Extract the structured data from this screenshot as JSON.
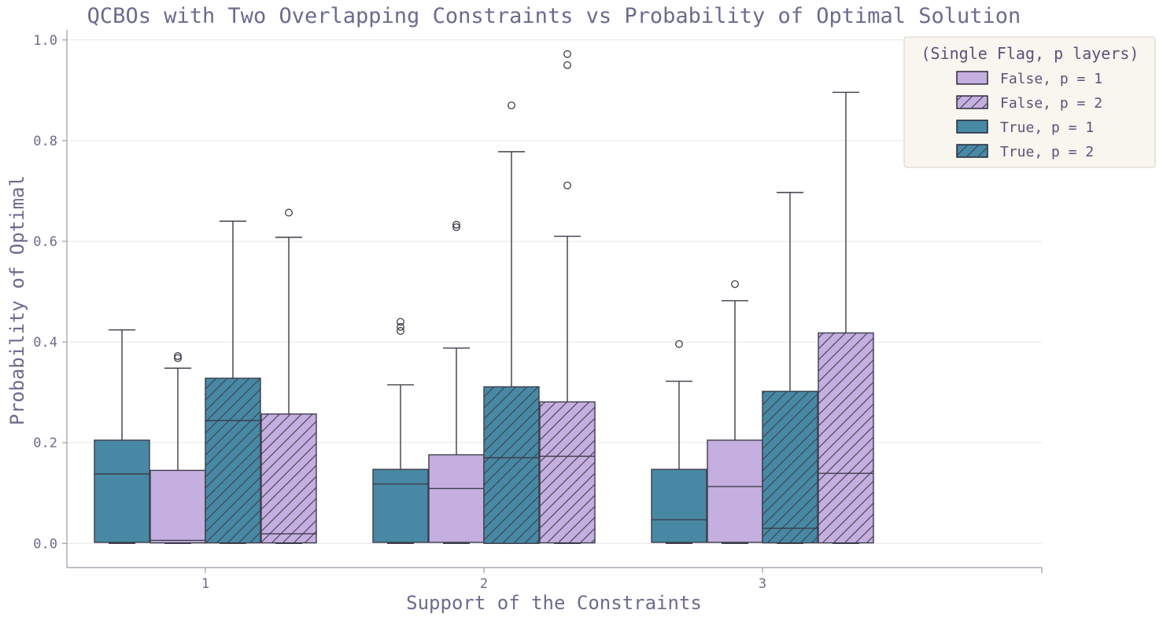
{
  "chart_data": {
    "type": "box",
    "title": "QCBOs with Two Overlapping Constraints vs Probability of Optimal Solution",
    "xlabel": "Support of the Constraints",
    "ylabel": "Probability of Optimal",
    "categories": [
      "1",
      "2",
      "3"
    ],
    "ylim": [
      -0.048,
      1.02
    ],
    "yticks": [
      "0.0",
      "0.2",
      "0.4",
      "0.6",
      "0.8",
      "1.0"
    ],
    "grid": true,
    "legend": {
      "title": "(Single Flag, p layers)",
      "placement": "top-right",
      "entries": [
        {
          "label": "False, p = 1",
          "color": "#c5aee0",
          "hatch": false
        },
        {
          "label": "False, p = 2",
          "color": "#c5aee0",
          "hatch": true
        },
        {
          "label": "True, p = 1",
          "color": "#4789a5",
          "hatch": false
        },
        {
          "label": "True, p = 2",
          "color": "#4789a5",
          "hatch": true
        }
      ]
    },
    "boxes": [
      {
        "category": "1",
        "color": "#4789a5",
        "hatch": false,
        "min": 0.0,
        "q1": 0.002,
        "median": 0.138,
        "q3": 0.205,
        "max": 0.424,
        "outliers": []
      },
      {
        "category": "1",
        "color": "#c5aee0",
        "hatch": false,
        "min": 0.0,
        "q1": 0.001,
        "median": 0.006,
        "q3": 0.145,
        "max": 0.348,
        "outliers": [
          0.368,
          0.372
        ]
      },
      {
        "category": "1",
        "color": "#4789a5",
        "hatch": true,
        "min": 0.0,
        "q1": 0.001,
        "median": 0.244,
        "q3": 0.328,
        "max": 0.64,
        "outliers": []
      },
      {
        "category": "1",
        "color": "#c5aee0",
        "hatch": true,
        "min": 0.0,
        "q1": 0.001,
        "median": 0.019,
        "q3": 0.257,
        "max": 0.608,
        "outliers": [
          0.657
        ]
      },
      {
        "category": "2",
        "color": "#4789a5",
        "hatch": false,
        "min": 0.0,
        "q1": 0.002,
        "median": 0.118,
        "q3": 0.147,
        "max": 0.315,
        "outliers": [
          0.422,
          0.43,
          0.44
        ]
      },
      {
        "category": "2",
        "color": "#c5aee0",
        "hatch": false,
        "min": 0.0,
        "q1": 0.002,
        "median": 0.109,
        "q3": 0.176,
        "max": 0.388,
        "outliers": [
          0.628,
          0.633
        ]
      },
      {
        "category": "2",
        "color": "#4789a5",
        "hatch": true,
        "min": 0.0,
        "q1": 0.0,
        "median": 0.17,
        "q3": 0.311,
        "max": 0.778,
        "outliers": [
          0.87
        ]
      },
      {
        "category": "2",
        "color": "#c5aee0",
        "hatch": true,
        "min": 0.0,
        "q1": 0.001,
        "median": 0.173,
        "q3": 0.281,
        "max": 0.61,
        "outliers": [
          0.711,
          0.95,
          0.972
        ]
      },
      {
        "category": "3",
        "color": "#4789a5",
        "hatch": false,
        "min": 0.0,
        "q1": 0.002,
        "median": 0.047,
        "q3": 0.147,
        "max": 0.322,
        "outliers": [
          0.396
        ]
      },
      {
        "category": "3",
        "color": "#c5aee0",
        "hatch": false,
        "min": 0.0,
        "q1": 0.002,
        "median": 0.113,
        "q3": 0.205,
        "max": 0.482,
        "outliers": [
          0.515
        ]
      },
      {
        "category": "3",
        "color": "#4789a5",
        "hatch": true,
        "min": 0.0,
        "q1": 0.001,
        "median": 0.03,
        "q3": 0.302,
        "max": 0.697,
        "outliers": []
      },
      {
        "category": "3",
        "color": "#c5aee0",
        "hatch": true,
        "min": 0.0,
        "q1": 0.001,
        "median": 0.139,
        "q3": 0.418,
        "max": 0.896,
        "outliers": []
      }
    ]
  }
}
